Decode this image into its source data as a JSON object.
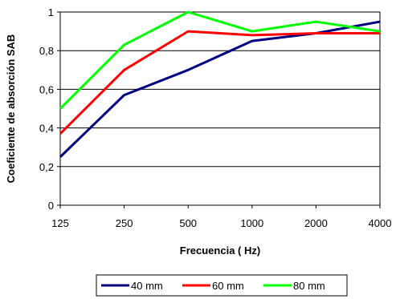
{
  "chart_data": {
    "type": "line",
    "title": "",
    "xlabel": "Frecuencia ( Hz)",
    "ylabel": "Coeficiente de absorción  SAB",
    "categories": [
      "125",
      "250",
      "500",
      "1000",
      "2000",
      "4000"
    ],
    "ylim": [
      0,
      1
    ],
    "yticks": [
      0,
      0.2,
      0.4,
      0.6,
      0.8,
      1
    ],
    "ytick_labels": [
      "0",
      "0,2",
      "0,4",
      "0,6",
      "0,8",
      "1"
    ],
    "grid": "horizontal",
    "legend_position": "bottom",
    "series": [
      {
        "name": "40 mm",
        "color": "#000080",
        "values": [
          0.25,
          0.57,
          0.7,
          0.85,
          0.89,
          0.95
        ]
      },
      {
        "name": "60 mm",
        "color": "#ff0000",
        "values": [
          0.37,
          0.7,
          0.9,
          0.88,
          0.89,
          0.89
        ]
      },
      {
        "name": "80 mm",
        "color": "#00ff00",
        "values": [
          0.5,
          0.83,
          1.0,
          0.9,
          0.95,
          0.9
        ]
      }
    ]
  }
}
